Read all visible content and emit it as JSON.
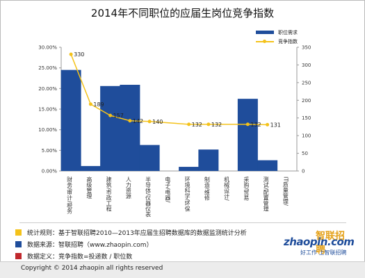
{
  "chart_data": {
    "type": "bar",
    "title": "2014年不同职位的应届生岗位竞争指数",
    "categories": [
      "财务/审计/税务",
      "高级管理",
      "建筑/市政工程",
      "人力资源",
      "半导体/仪器仪表",
      "电子/电器/",
      "环境科学/环保",
      "制造/维修",
      "机械设计/",
      "采购/贸易",
      "测试/配置管理",
      "IT质量管理/"
    ],
    "series": [
      {
        "name": "职位需求",
        "type": "bar",
        "axis": "left",
        "unit": "%",
        "values": [
          24.5,
          1.2,
          20.6,
          20.9,
          6.3,
          null,
          1.0,
          5.2,
          null,
          17.5,
          2.6,
          null
        ]
      },
      {
        "name": "竞争指数",
        "type": "line",
        "axis": "right",
        "values": [
          330,
          189,
          157,
          142,
          140,
          null,
          132,
          132,
          null,
          132,
          131,
          null
        ]
      }
    ],
    "data_labels": [
      "330",
      "189",
      "157",
      "142",
      "140",
      "132",
      "132",
      "132",
      "131"
    ],
    "y_left": {
      "min": 0,
      "max": 30,
      "ticks": [
        "0.00%",
        "5.00%",
        "10.00%",
        "15.00%",
        "20.00%",
        "25.00%",
        "30.00%"
      ]
    },
    "y_right": {
      "min": 0,
      "max": 350,
      "ticks": [
        "0",
        "50",
        "100",
        "150",
        "200",
        "250",
        "300",
        "350"
      ]
    },
    "legend_position": "top-right",
    "grid": false,
    "colors": {
      "bar": "#1f4d9b",
      "line": "#f4c21a"
    }
  },
  "notes": [
    {
      "text": "统计规则：基于智联招聘2010—2013年应届生招聘数据库的数据监测统计分析",
      "color": "#f4c21a"
    },
    {
      "text": "数据来源：智联招聘（www.zhaopin.com）",
      "color": "#1f4d9b"
    },
    {
      "text": "数据定义：竞争指数=投递数 / 职位数",
      "color": "#c0282d"
    }
  ],
  "logo": {
    "brand": "zhaopin.com",
    "brand_cn": "智联招聘",
    "slogan": "好工作 上智联招聘"
  },
  "footer": {
    "copyright": "Copyright © 2014 zhaopin all rights reserved"
  }
}
